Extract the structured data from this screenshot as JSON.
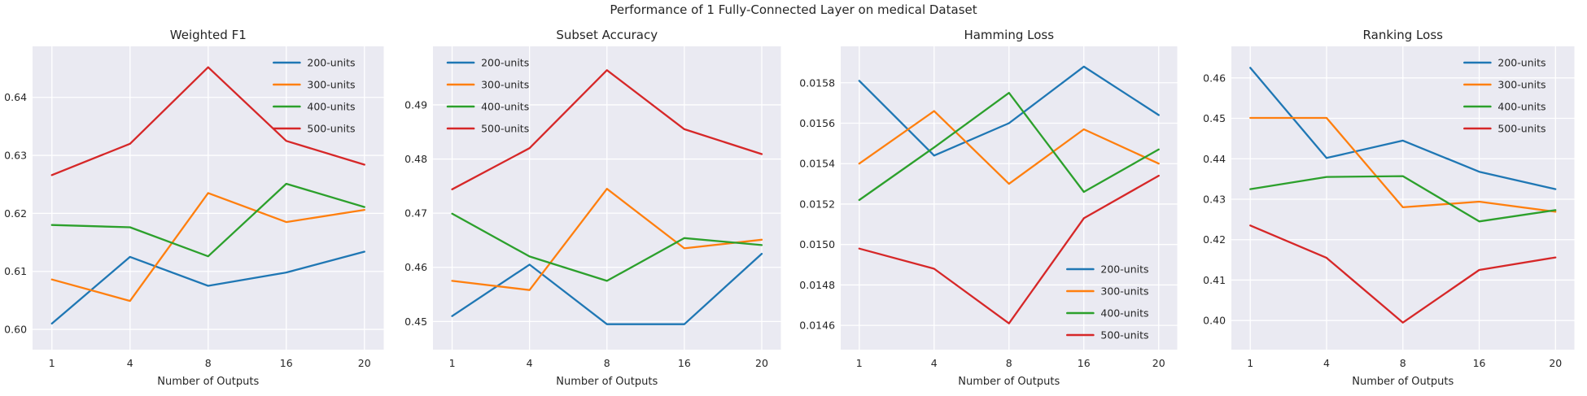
{
  "figure": {
    "suptitle": "Performance of 1 Fully-Connected Layer on medical Dataset",
    "xlabel": "Number of Outputs",
    "x_tick_labels": [
      "1",
      "4",
      "8",
      "16",
      "20"
    ],
    "plot_bg_color": "#eaeaf2",
    "grid_color": "#ffffff",
    "text_color": "#262626",
    "legend_labels": [
      "200-units",
      "300-units",
      "400-units",
      "500-units"
    ],
    "series_colors": {
      "200-units": "#1f77b4",
      "300-units": "#ff7f0e",
      "400-units": "#2ca02c",
      "500-units": "#d62728"
    }
  },
  "chart_data": [
    {
      "type": "line",
      "title": "Weighted F1",
      "xlabel": "Number of Outputs",
      "x": [
        1,
        4,
        8,
        16,
        20
      ],
      "x_axis_style": "categorical-evenly-spaced",
      "grid": true,
      "legend_position": "upper-right",
      "ylim": [
        0.5965,
        0.6488
      ],
      "yticks": [
        0.6,
        0.61,
        0.62,
        0.63,
        0.64
      ],
      "ytick_labels": [
        "0.60",
        "0.61",
        "0.62",
        "0.63",
        "0.64"
      ],
      "series": [
        {
          "name": "200-units",
          "color": "#1f77b4",
          "values": [
            0.601,
            0.6125,
            0.6075,
            0.6098,
            0.6134
          ]
        },
        {
          "name": "300-units",
          "color": "#ff7f0e",
          "values": [
            0.6086,
            0.6049,
            0.6235,
            0.6185,
            0.6206
          ]
        },
        {
          "name": "400-units",
          "color": "#2ca02c",
          "values": [
            0.618,
            0.6176,
            0.6126,
            0.6251,
            0.6211
          ]
        },
        {
          "name": "500-units",
          "color": "#d62728",
          "values": [
            0.6266,
            0.632,
            0.6452,
            0.6325,
            0.6284
          ]
        }
      ]
    },
    {
      "type": "line",
      "title": "Subset Accuracy",
      "xlabel": "Number of Outputs",
      "x": [
        1,
        4,
        8,
        16,
        20
      ],
      "x_axis_style": "categorical-evenly-spaced",
      "grid": true,
      "legend_position": "upper-left",
      "ylim": [
        0.4448,
        0.5008
      ],
      "yticks": [
        0.45,
        0.46,
        0.47,
        0.48,
        0.49
      ],
      "ytick_labels": [
        "0.45",
        "0.46",
        "0.47",
        "0.48",
        "0.49"
      ],
      "series": [
        {
          "name": "200-units",
          "color": "#1f77b4",
          "values": [
            0.451,
            0.4605,
            0.4495,
            0.4495,
            0.4625
          ]
        },
        {
          "name": "300-units",
          "color": "#ff7f0e",
          "values": [
            0.4575,
            0.4558,
            0.4745,
            0.4635,
            0.4651
          ]
        },
        {
          "name": "400-units",
          "color": "#2ca02c",
          "values": [
            0.4699,
            0.462,
            0.4575,
            0.4654,
            0.4641
          ]
        },
        {
          "name": "500-units",
          "color": "#d62728",
          "values": [
            0.4744,
            0.482,
            0.4964,
            0.4855,
            0.4809
          ]
        }
      ]
    },
    {
      "type": "line",
      "title": "Hamming Loss",
      "xlabel": "Number of Outputs",
      "x": [
        1,
        4,
        8,
        16,
        20
      ],
      "x_axis_style": "categorical-evenly-spaced",
      "grid": true,
      "legend_position": "lower-right",
      "ylim": [
        0.01448,
        0.01598
      ],
      "yticks": [
        0.0146,
        0.0148,
        0.015,
        0.0152,
        0.0154,
        0.0156,
        0.0158
      ],
      "ytick_labels": [
        "0.0146",
        "0.0148",
        "0.0150",
        "0.0152",
        "0.0154",
        "0.0156",
        "0.0158"
      ],
      "series": [
        {
          "name": "200-units",
          "color": "#1f77b4",
          "values": [
            0.01581,
            0.01544,
            0.0156,
            0.01588,
            0.01564
          ]
        },
        {
          "name": "300-units",
          "color": "#ff7f0e",
          "values": [
            0.0154,
            0.01566,
            0.0153,
            0.01557,
            0.0154
          ]
        },
        {
          "name": "400-units",
          "color": "#2ca02c",
          "values": [
            0.01522,
            0.01548,
            0.01575,
            0.01526,
            0.01547
          ]
        },
        {
          "name": "500-units",
          "color": "#d62728",
          "values": [
            0.01498,
            0.01488,
            0.01461,
            0.01513,
            0.01534
          ]
        }
      ]
    },
    {
      "type": "line",
      "title": "Ranking Loss",
      "xlabel": "Number of Outputs",
      "x": [
        1,
        4,
        8,
        16,
        20
      ],
      "x_axis_style": "categorical-evenly-spaced",
      "grid": true,
      "legend_position": "upper-right",
      "ylim": [
        0.3928,
        0.4678
      ],
      "yticks": [
        0.4,
        0.41,
        0.42,
        0.43,
        0.44,
        0.45,
        0.46
      ],
      "ytick_labels": [
        "0.40",
        "0.41",
        "0.42",
        "0.43",
        "0.44",
        "0.45",
        "0.46"
      ],
      "series": [
        {
          "name": "200-units",
          "color": "#1f77b4",
          "values": [
            0.4625,
            0.4402,
            0.4445,
            0.4368,
            0.4325
          ]
        },
        {
          "name": "300-units",
          "color": "#ff7f0e",
          "values": [
            0.4501,
            0.4501,
            0.428,
            0.4294,
            0.4269
          ]
        },
        {
          "name": "400-units",
          "color": "#2ca02c",
          "values": [
            0.4325,
            0.4355,
            0.4357,
            0.4245,
            0.4273
          ]
        },
        {
          "name": "500-units",
          "color": "#d62728",
          "values": [
            0.4235,
            0.4155,
            0.3995,
            0.4125,
            0.4156
          ]
        }
      ]
    }
  ]
}
